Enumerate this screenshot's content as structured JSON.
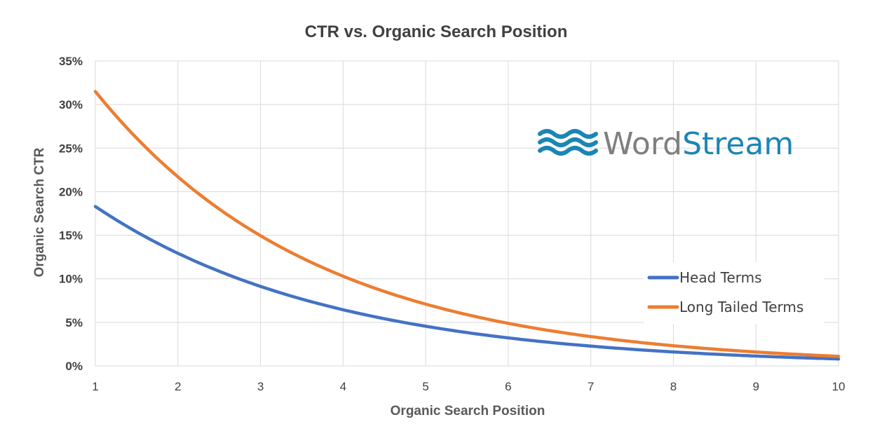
{
  "chart_data": {
    "type": "line",
    "title": "CTR vs. Organic Search Position",
    "xlabel": "Organic Search Position",
    "ylabel": "Organic Search CTR",
    "xlim": [
      1,
      10
    ],
    "ylim": [
      0,
      35
    ],
    "x_ticks": [
      "1",
      "2",
      "3",
      "4",
      "5",
      "6",
      "7",
      "8",
      "9",
      "10"
    ],
    "y_ticks": [
      "0%",
      "5%",
      "10%",
      "15%",
      "20%",
      "25%",
      "30%",
      "35%"
    ],
    "grid": true,
    "legend_position": "bottom-right",
    "x": [
      1,
      2,
      3,
      4,
      5,
      6,
      7,
      8,
      9,
      10
    ],
    "series": [
      {
        "name": "Head Terms",
        "color": "#4472c4",
        "values": [
          18.3,
          13.0,
          9.2,
          6.5,
          4.6,
          3.3,
          2.4,
          1.7,
          1.2,
          0.8
        ]
      },
      {
        "name": "Long Tailed Terms",
        "color": "#ed7d31",
        "values": [
          31.5,
          21.7,
          14.9,
          10.3,
          7.1,
          4.9,
          3.4,
          2.3,
          1.6,
          1.1
        ]
      }
    ]
  },
  "logo": {
    "word_part1": "Word",
    "word_part2": "Stream",
    "color_part1": "#7f7f7f",
    "color_part2": "#1a86b5",
    "icon": "waves-icon"
  }
}
